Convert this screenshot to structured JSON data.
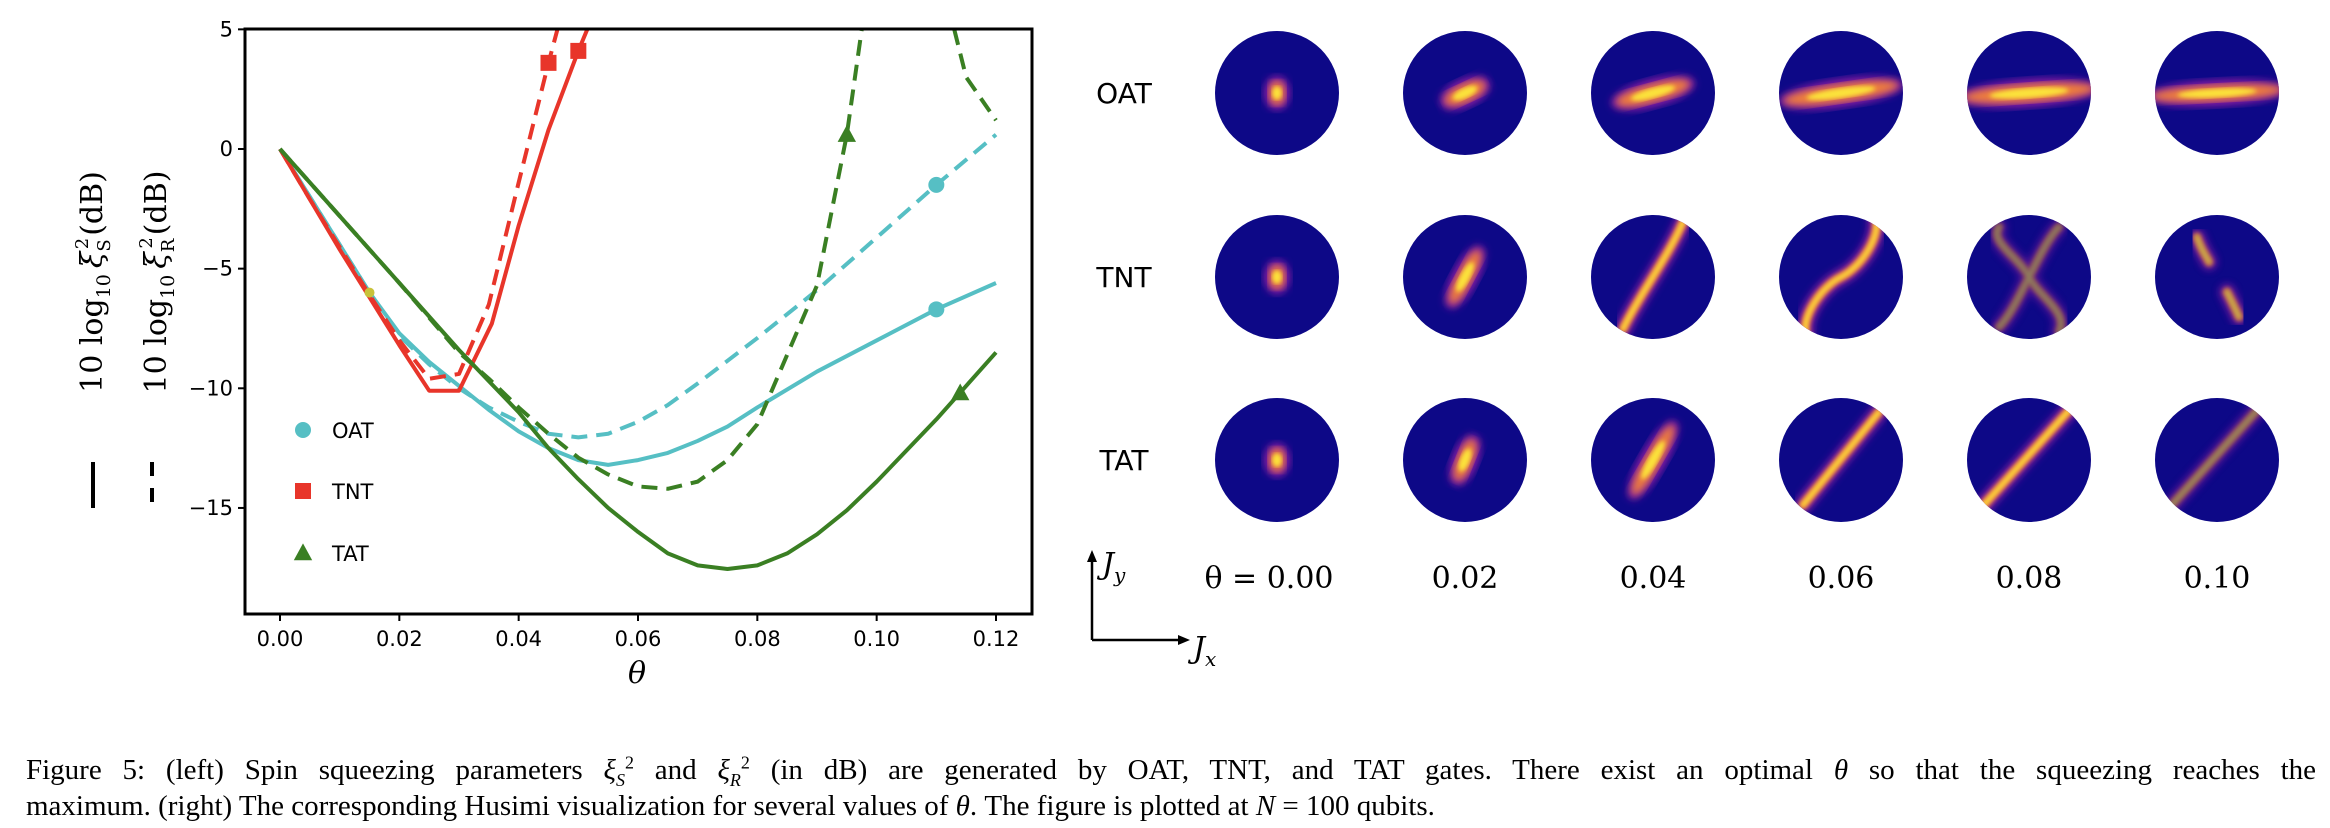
{
  "chart_data": {
    "type": "line",
    "xlabel": "θ",
    "ylabels": [
      {
        "text": "10 log10 ξS2 (dB)",
        "base": "10 log",
        "sub": "10",
        "xi": "ξ",
        "xi_sub": "S",
        "xi_sup": "2",
        "unit": "(dB)",
        "linestyle": "solid"
      },
      {
        "text": "10 log10 ξR2 (dB)",
        "base": "10 log",
        "sub": "10",
        "xi": "ξ",
        "xi_sub": "R",
        "xi_sup": "2",
        "unit": "(dB)",
        "linestyle": "dashed"
      }
    ],
    "xlim": [
      -0.006,
      0.126
    ],
    "ylim": [
      -19.4,
      5
    ],
    "xticks": [
      "0.00",
      "0.02",
      "0.04",
      "0.06",
      "0.08",
      "0.10",
      "0.12"
    ],
    "yticks": [
      "5",
      "0",
      "−5",
      "−10",
      "−15"
    ],
    "grid": false,
    "legend": {
      "placement": "lower-left",
      "entries": [
        {
          "label": "OAT",
          "marker": "circle",
          "color": "#56bfc4"
        },
        {
          "label": "TNT",
          "marker": "square",
          "color": "#e8352a"
        },
        {
          "label": "TAT",
          "marker": "triangle",
          "color": "#3a7f23"
        }
      ]
    },
    "series": [
      {
        "name": "OAT",
        "style": "solid",
        "color": "#56bfc4",
        "x": [
          0,
          0.005,
          0.01,
          0.015,
          0.02,
          0.025,
          0.03,
          0.035,
          0.04,
          0.045,
          0.05,
          0.055,
          0.06,
          0.065,
          0.07,
          0.075,
          0.08,
          0.09,
          0.1,
          0.11,
          0.12
        ],
        "y": [
          0,
          -2,
          -4,
          -6,
          -7.7,
          -8.9,
          -9.9,
          -10.9,
          -11.8,
          -12.5,
          -13.0,
          -13.2,
          -13.0,
          -12.7,
          -12.2,
          -11.6,
          -10.8,
          -9.3,
          -8.0,
          -6.7,
          -5.6
        ],
        "markers": [
          [
            0.11,
            -6.7
          ]
        ]
      },
      {
        "name": "OAT",
        "style": "dashed",
        "color": "#56bfc4",
        "x": [
          0,
          0.005,
          0.01,
          0.015,
          0.02,
          0.025,
          0.03,
          0.035,
          0.04,
          0.045,
          0.05,
          0.055,
          0.06,
          0.065,
          0.07,
          0.08,
          0.09,
          0.1,
          0.11,
          0.12
        ],
        "y": [
          0,
          -2,
          -4,
          -6,
          -7.8,
          -9.0,
          -10.0,
          -10.8,
          -11.4,
          -11.9,
          -12.05,
          -11.9,
          -11.4,
          -10.7,
          -9.8,
          -7.9,
          -5.9,
          -3.7,
          -1.5,
          0.6
        ],
        "markers": [
          [
            0.11,
            -1.5
          ]
        ]
      },
      {
        "name": "TNT",
        "style": "solid",
        "color": "#e8352a",
        "x": [
          0,
          0.005,
          0.01,
          0.015,
          0.02,
          0.025,
          0.03,
          0.0355,
          0.04,
          0.045,
          0.05,
          0.0515
        ],
        "y": [
          0,
          -2.1,
          -4.2,
          -6.2,
          -8.2,
          -10.1,
          -10.1,
          -7.3,
          -3.2,
          0.8,
          4.1,
          5
        ],
        "markers": [
          [
            0.05,
            4.1
          ]
        ]
      },
      {
        "name": "TNT",
        "style": "dashed",
        "color": "#e8352a",
        "x": [
          0,
          0.005,
          0.01,
          0.015,
          0.02,
          0.025,
          0.03,
          0.035,
          0.04,
          0.045,
          0.0465
        ],
        "y": [
          0,
          -2.1,
          -4.1,
          -6.1,
          -8.0,
          -9.6,
          -9.4,
          -6.5,
          -1.4,
          3.6,
          5
        ],
        "markers": [
          [
            0.045,
            3.6
          ]
        ]
      },
      {
        "name": "TAT",
        "style": "solid",
        "color": "#3a7f23",
        "x": [
          0,
          0.01,
          0.02,
          0.03,
          0.04,
          0.045,
          0.05,
          0.055,
          0.06,
          0.065,
          0.07,
          0.075,
          0.08,
          0.085,
          0.09,
          0.095,
          0.1,
          0.105,
          0.11,
          0.115,
          0.12
        ],
        "y": [
          0,
          -2.8,
          -5.6,
          -8.4,
          -11.0,
          -12.5,
          -13.8,
          -15.0,
          -16.0,
          -16.9,
          -17.4,
          -17.55,
          -17.4,
          -16.9,
          -16.1,
          -15.1,
          -13.9,
          -12.6,
          -11.3,
          -9.9,
          -8.5
        ],
        "markers": [
          [
            0.114,
            -10.2
          ]
        ]
      },
      {
        "name": "TAT",
        "style": "dashed",
        "color": "#3a7f23",
        "x": [
          0,
          0.01,
          0.02,
          0.03,
          0.035,
          0.04,
          0.045,
          0.05,
          0.055,
          0.06,
          0.065,
          0.07,
          0.075,
          0.08,
          0.085,
          0.09,
          0.095,
          0.0975
        ],
        "y": [
          0,
          -2.8,
          -5.6,
          -8.5,
          -9.6,
          -10.8,
          -11.9,
          -12.9,
          -13.6,
          -14.1,
          -14.2,
          -13.9,
          -13.0,
          -11.5,
          -8.6,
          -5.7,
          0.6,
          5
        ],
        "extra_segment": {
          "x": [
            0.113,
            0.115,
            0.12
          ],
          "y": [
            5,
            3,
            1.2
          ]
        },
        "markers": [
          [
            0.095,
            0.6
          ]
        ]
      }
    ],
    "annotation_points": [
      {
        "x": 0.015,
        "y": -6,
        "color": "#c8c23a"
      }
    ]
  },
  "husimi": {
    "rows": [
      "OAT",
      "TNT",
      "TAT"
    ],
    "theta_labels": [
      "θ = 0.00",
      "0.02",
      "0.04",
      "0.06",
      "0.08",
      "0.10"
    ],
    "axis_y_label": "J",
    "axis_y_sub": "y",
    "axis_x_label": "J",
    "axis_x_sub": "x",
    "background_color": "#0d0887"
  },
  "caption": {
    "l1_a": "Figure 5: (left) Spin squeezing parameters ",
    "xi": "ξ",
    "sub_s": "S",
    "sup": "2",
    "and": " and ",
    "sub_r": "R",
    "l1_b": " (in dB) are generated by OAT, TNT, and TAT gates. There exist an optimal ",
    "theta": "θ",
    "l1_c": " so that the squeezing reaches the",
    "l2_a": "maximum. (right) The corresponding Husimi visualization for several values of ",
    "l2_b": ". The figure is plotted at ",
    "n": "N",
    "l2_c": " = 100 qubits."
  }
}
